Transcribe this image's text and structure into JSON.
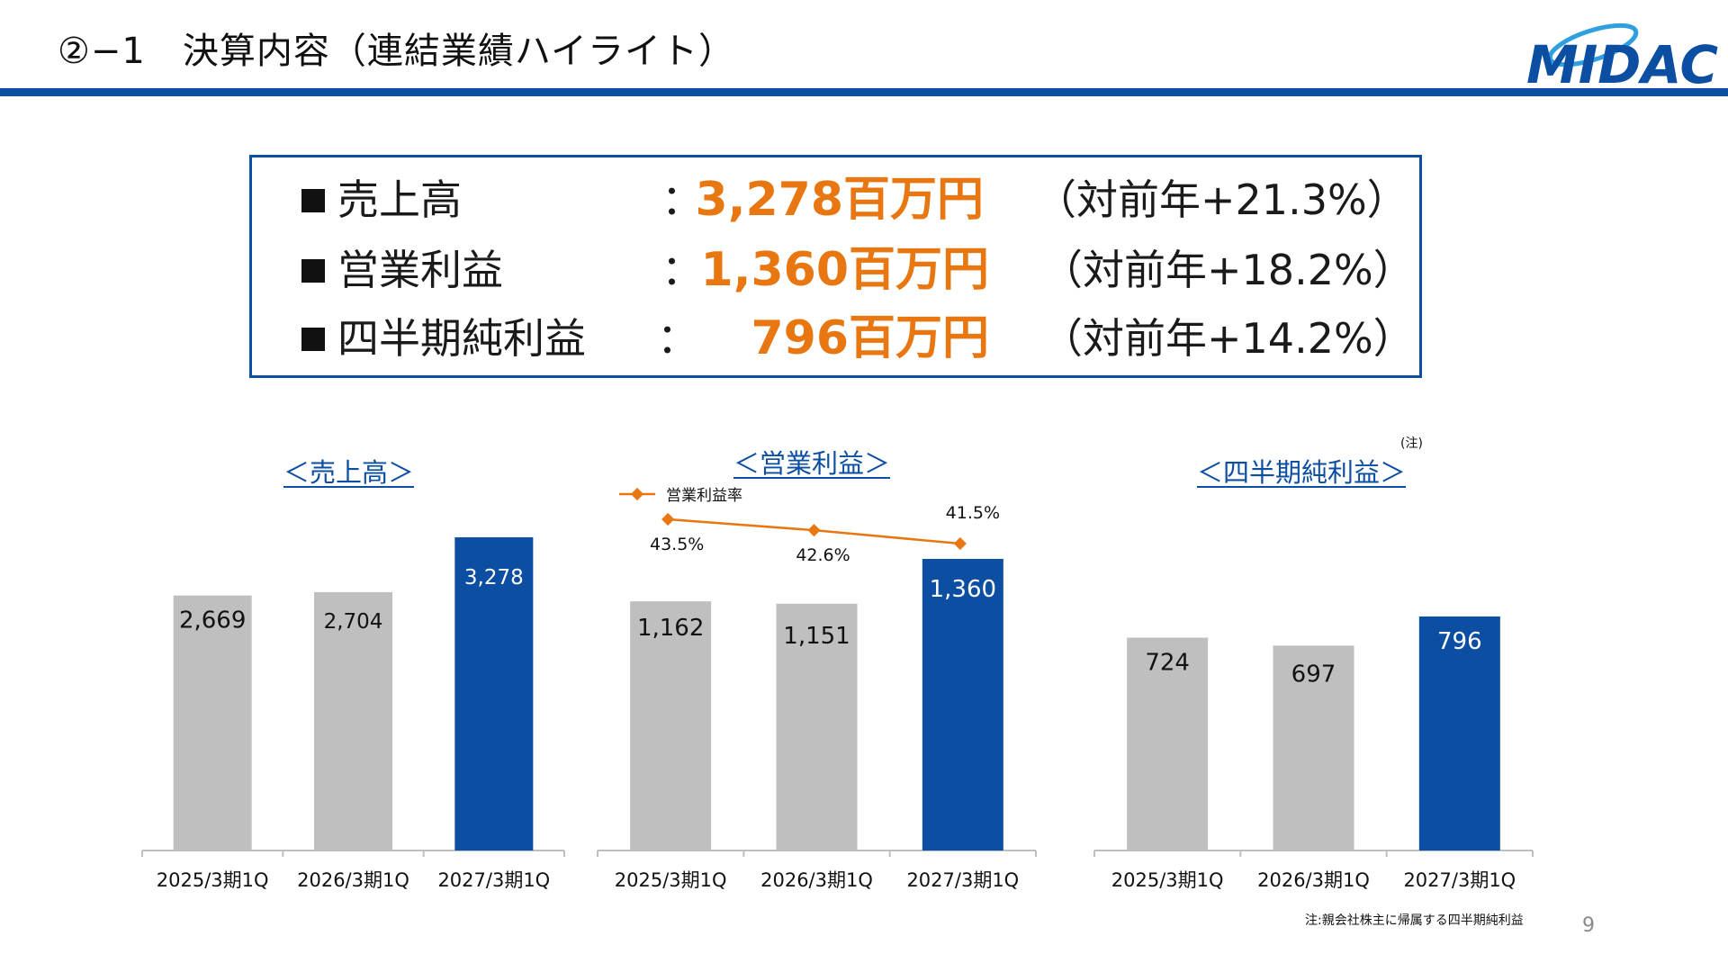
{
  "header": {
    "title": "②−1　決算内容（連結業績ハイライト）",
    "logo_text": "MIDAC"
  },
  "summary": [
    {
      "label": "売上高",
      "colon": "：",
      "value": "3,278百万円",
      "note": "（対前年+21.3%）"
    },
    {
      "label": "営業利益",
      "colon": "：",
      "value": "1,360百万円",
      "note": "（対前年+18.2%）"
    },
    {
      "label": "四半期純利益",
      "colon": "：",
      "value": "796百万円",
      "note": "（対前年+14.2%）"
    }
  ],
  "colors": {
    "accent": "#0b4ea2",
    "gray_bar": "#bfbfbf",
    "orange": "#e87712"
  },
  "chart_data": [
    {
      "type": "bar",
      "title": "＜売上高＞",
      "categories": [
        "2025/3期1Q",
        "2026/3期1Q",
        "2027/3期1Q"
      ],
      "values": [
        2669,
        2704,
        3278
      ],
      "labels": [
        "2,669",
        "2,704",
        "3,278"
      ],
      "ylim": [
        0,
        3500
      ]
    },
    {
      "type": "bar",
      "title": "＜営業利益＞",
      "categories": [
        "2025/3期1Q",
        "2026/3期1Q",
        "2027/3期1Q"
      ],
      "values": [
        1162,
        1151,
        1360
      ],
      "labels": [
        "1,162",
        "1,151",
        "1,360"
      ],
      "ylim": [
        0,
        1500
      ],
      "line_series": {
        "name": "営業利益率",
        "values": [
          43.5,
          42.6,
          41.5
        ],
        "labels": [
          "43.5%",
          "42.6%",
          "41.5%"
        ]
      }
    },
    {
      "type": "bar",
      "title": "＜四半期純利益＞",
      "title_note": "(注)",
      "categories": [
        "2025/3期1Q",
        "2026/3期1Q",
        "2027/3期1Q"
      ],
      "values": [
        724,
        697,
        796
      ],
      "labels": [
        "724",
        "697",
        "796"
      ],
      "ylim": [
        0,
        1000
      ]
    }
  ],
  "footnote": "注:親会社株主に帰属する四半期純利益",
  "page_number": "9"
}
